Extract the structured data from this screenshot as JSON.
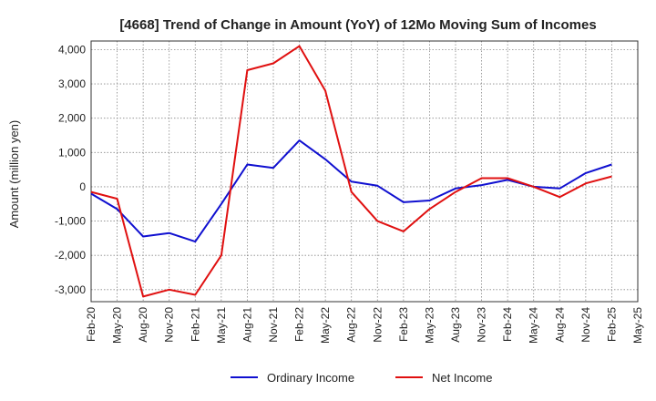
{
  "chart_data": {
    "type": "line",
    "title": "[4668]  Trend of Change in Amount (YoY) of 12Mo Moving Sum of Incomes",
    "ylabel": "Amount (million yen)",
    "xlabel": "",
    "ylim": [
      -3350,
      4250
    ],
    "yticks": [
      4000,
      3000,
      2000,
      1000,
      0,
      -1000,
      -2000,
      -3000
    ],
    "ytick_labels": [
      "4,000",
      "3,000",
      "2,000",
      "1,000",
      "0",
      "-1,000",
      "-2,000",
      "-3,000"
    ],
    "x": [
      "Feb-20",
      "May-20",
      "Aug-20",
      "Nov-20",
      "Feb-21",
      "May-21",
      "Aug-21",
      "Nov-21",
      "Feb-22",
      "May-22",
      "Aug-22",
      "Nov-22",
      "Feb-23",
      "May-23",
      "Aug-23",
      "Nov-23",
      "Feb-24",
      "May-24",
      "Aug-24",
      "Nov-24",
      "Feb-25",
      "May-25"
    ],
    "grid": true,
    "legend_position": "bottom",
    "series": [
      {
        "name": "Ordinary Income",
        "color": "#1010d0",
        "values": [
          -200,
          -650,
          -1450,
          -1350,
          -1600,
          -500,
          650,
          550,
          1350,
          800,
          150,
          30,
          -450,
          -400,
          -50,
          50,
          200,
          0,
          -50,
          400,
          650,
          null
        ]
      },
      {
        "name": "Net Income",
        "color": "#e01010",
        "values": [
          -150,
          -350,
          -3200,
          -3000,
          -3150,
          -2000,
          3400,
          3600,
          4100,
          2800,
          -150,
          -1000,
          -1300,
          -650,
          -150,
          250,
          250,
          0,
          -300,
          100,
          300,
          null
        ]
      }
    ]
  }
}
